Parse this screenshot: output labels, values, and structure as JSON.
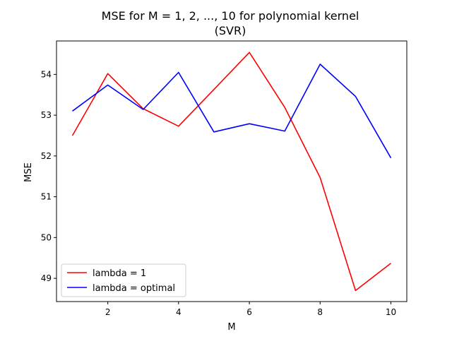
{
  "chart_data": {
    "type": "line",
    "title": "MSE for M = 1, 2, ..., 10 for polynomial kernel",
    "subtitle": "(SVR)",
    "xlabel": "M",
    "ylabel": "MSE",
    "xlim": [
      0.55,
      10.45
    ],
    "ylim": [
      48.43,
      54.82
    ],
    "x_ticks": [
      2,
      4,
      6,
      8,
      10
    ],
    "y_ticks": [
      49,
      50,
      51,
      52,
      53,
      54
    ],
    "x": [
      1,
      2,
      3,
      4,
      5,
      6,
      7,
      8,
      9,
      10
    ],
    "grid": false,
    "legend_position": "lower-left",
    "series": [
      {
        "name": "lambda = 1",
        "color": "#ff0000",
        "values": [
          52.5,
          54.02,
          53.16,
          52.73,
          53.63,
          54.54,
          53.19,
          51.47,
          48.7,
          49.37
        ]
      },
      {
        "name": "lambda = optimal",
        "color": "#0000ff",
        "values": [
          53.1,
          53.74,
          53.14,
          54.05,
          52.59,
          52.79,
          52.61,
          54.25,
          53.46,
          51.95
        ]
      }
    ]
  }
}
